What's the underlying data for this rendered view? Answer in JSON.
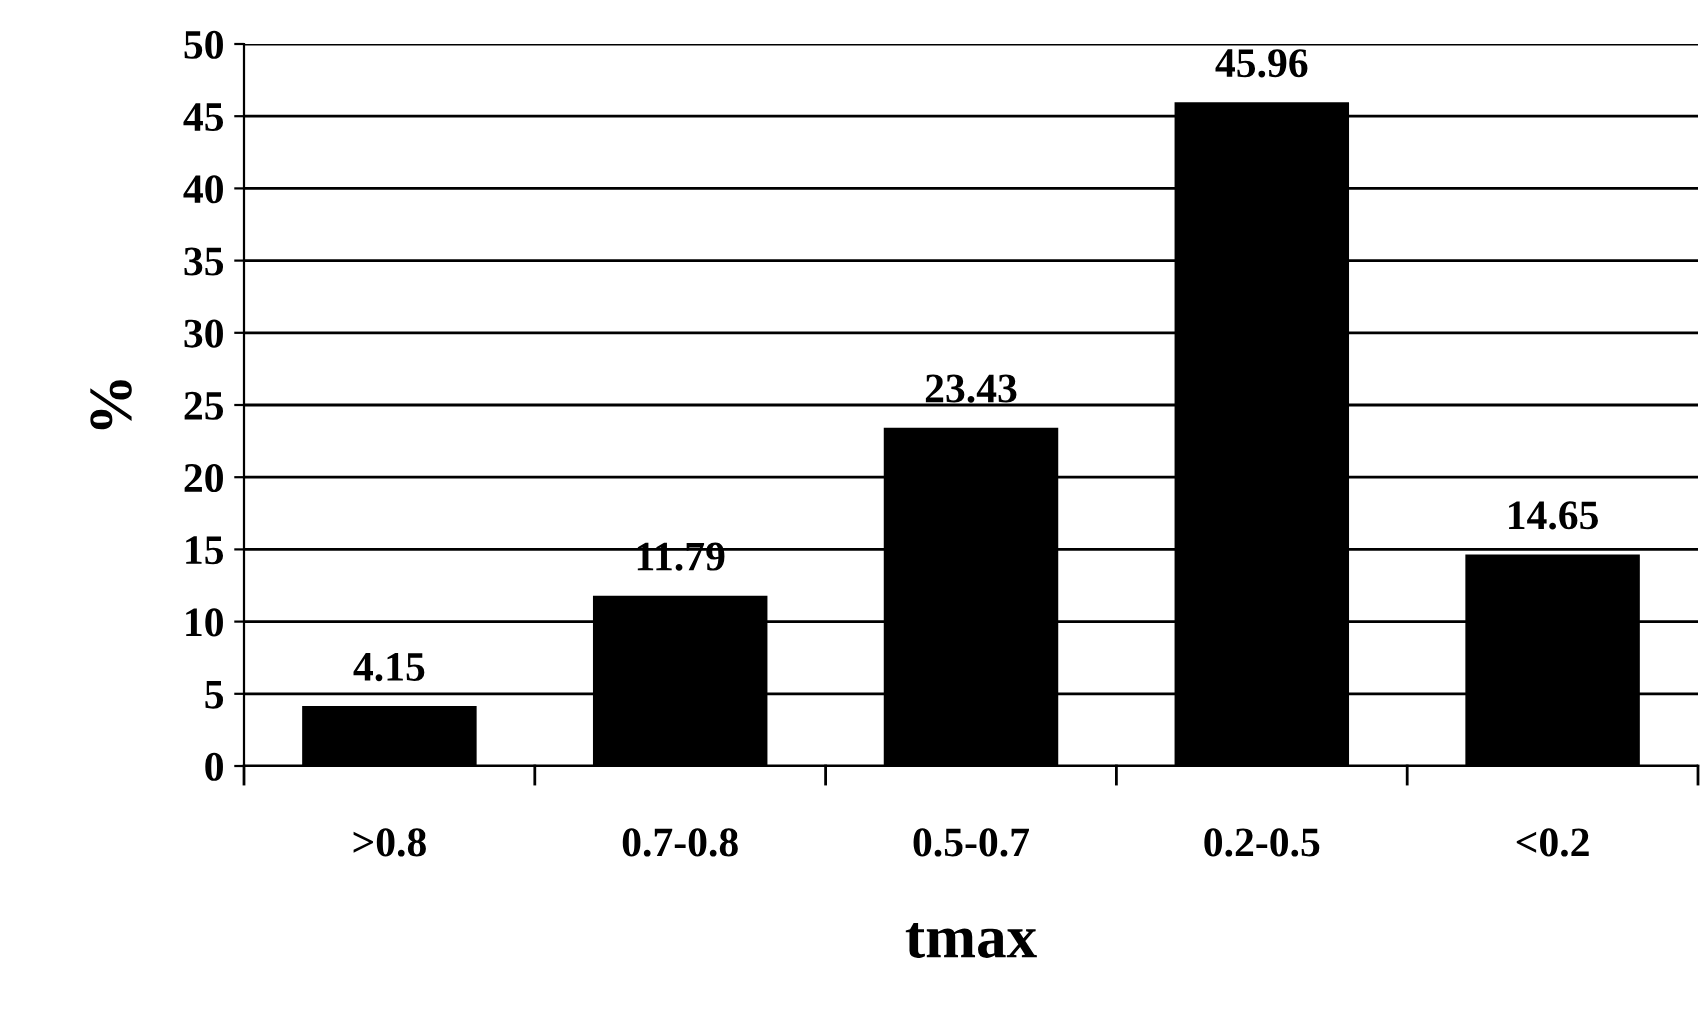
{
  "chart_data": {
    "type": "bar",
    "xlabel": "tmax",
    "ylabel": "%",
    "categories": [
      ">0.8",
      "0.7-0.8",
      "0.5-0.7",
      "0.2-0.5",
      "<0.2"
    ],
    "values": [
      4.15,
      11.79,
      23.43,
      45.96,
      14.65
    ],
    "color": "#000000",
    "ylim": [
      0,
      50
    ],
    "yticks": [
      0,
      5,
      10,
      15,
      20,
      25,
      30,
      35,
      40,
      45,
      50
    ],
    "grid": "y",
    "data_labels": true
  }
}
